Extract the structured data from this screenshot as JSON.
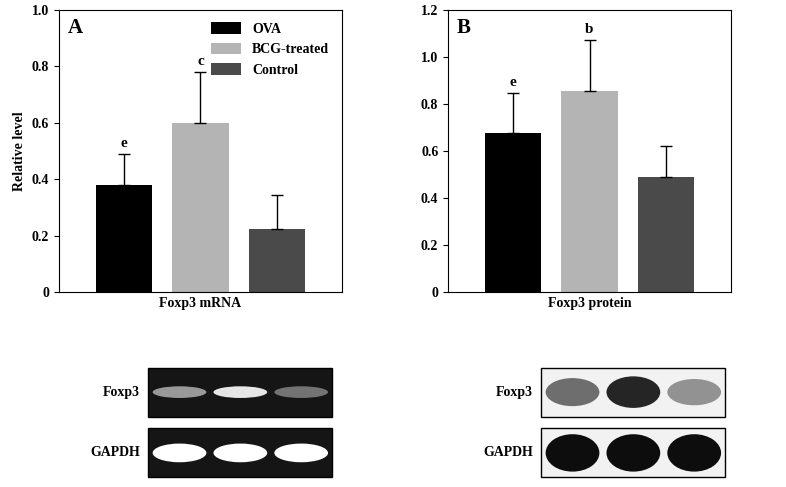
{
  "chart_data": [
    {
      "type": "bar",
      "title": "A",
      "y_label": "Relative level",
      "categories": [
        "Foxp3 mRNA"
      ],
      "series": [
        {
          "name": "OVA",
          "color": "#000000",
          "values": [
            0.38
          ],
          "errors": [
            0.11
          ],
          "letters": [
            "e"
          ]
        },
        {
          "name": "BCG-treated",
          "color": "#b4b4b4",
          "values": [
            0.6
          ],
          "errors": [
            0.18
          ],
          "letters": [
            "c"
          ]
        },
        {
          "name": "Control",
          "color": "#4a4a4a",
          "values": [
            0.225
          ],
          "errors": [
            0.12
          ],
          "letters": [
            null
          ]
        }
      ],
      "ylim": [
        0,
        1.0
      ],
      "yticks": [
        0,
        0.2,
        0.4,
        0.6,
        0.8,
        1.0
      ],
      "legend": "upper right",
      "blot_rows": [
        "Foxp3",
        "GAPDH"
      ]
    },
    {
      "type": "bar",
      "title": "B",
      "categories": [
        "Foxp3 protein"
      ],
      "series": [
        {
          "color": "#000000",
          "values": [
            0.675
          ],
          "errors": [
            0.17
          ],
          "letters": [
            "e"
          ]
        },
        {
          "color": "#b4b4b4",
          "values": [
            0.855
          ],
          "errors": [
            0.215
          ],
          "letters": [
            "b"
          ]
        },
        {
          "color": "#4a4a4a",
          "values": [
            0.49
          ],
          "errors": [
            0.13
          ],
          "letters": [
            null
          ]
        }
      ],
      "ylim": [
        0,
        1.2
      ],
      "yticks": [
        0,
        0.2,
        0.4,
        0.6,
        0.8,
        1.0,
        1.2
      ],
      "blot_rows": [
        "Foxp3",
        "GAPDH"
      ]
    }
  ]
}
